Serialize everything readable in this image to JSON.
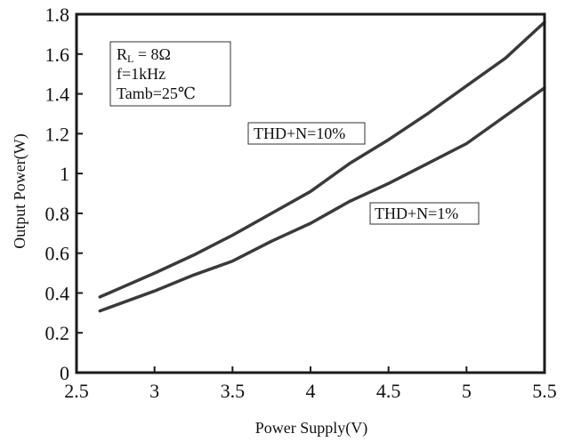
{
  "chart_data": {
    "type": "line",
    "title": "",
    "xlabel": "Power Supply(V)",
    "ylabel": "Output Power(W)",
    "xlim": [
      2.5,
      5.5
    ],
    "ylim": [
      0,
      1.8
    ],
    "xticks": [
      2.5,
      3,
      3.5,
      4,
      4.5,
      5,
      5.5
    ],
    "xtick_labels": [
      "2.5",
      "3",
      "3.5",
      "4",
      "4.5",
      "5",
      "5.5"
    ],
    "yticks": [
      0,
      0.2,
      0.4,
      0.6,
      0.8,
      1,
      1.2,
      1.4,
      1.6,
      1.8
    ],
    "ytick_labels": [
      "0",
      "0.2",
      "0.4",
      "0.6",
      "0.8",
      "1",
      "1.2",
      "1.4",
      "1.6",
      "1.8"
    ],
    "grid": false,
    "conditions": {
      "rl_main": "R",
      "rl_sub": "L",
      "rl_value": " = 8Ω",
      "freq": "f=1kHz",
      "temp": "Tamb=25℃"
    },
    "series": [
      {
        "name": "THD+N=10%",
        "x": [
          2.65,
          3.0,
          3.25,
          3.5,
          3.75,
          4.0,
          4.25,
          4.5,
          4.75,
          5.0,
          5.25,
          5.5
        ],
        "y": [
          0.38,
          0.5,
          0.59,
          0.69,
          0.8,
          0.91,
          1.05,
          1.17,
          1.3,
          1.44,
          1.58,
          1.76
        ]
      },
      {
        "name": "THD+N=1%",
        "x": [
          2.65,
          3.0,
          3.25,
          3.5,
          3.75,
          4.0,
          4.25,
          4.5,
          4.75,
          5.0,
          5.25,
          5.5
        ],
        "y": [
          0.31,
          0.41,
          0.49,
          0.56,
          0.66,
          0.75,
          0.86,
          0.95,
          1.05,
          1.15,
          1.29,
          1.43
        ]
      }
    ],
    "line_color": "#3a3a3a",
    "axis_color": "#1a1a1a"
  }
}
